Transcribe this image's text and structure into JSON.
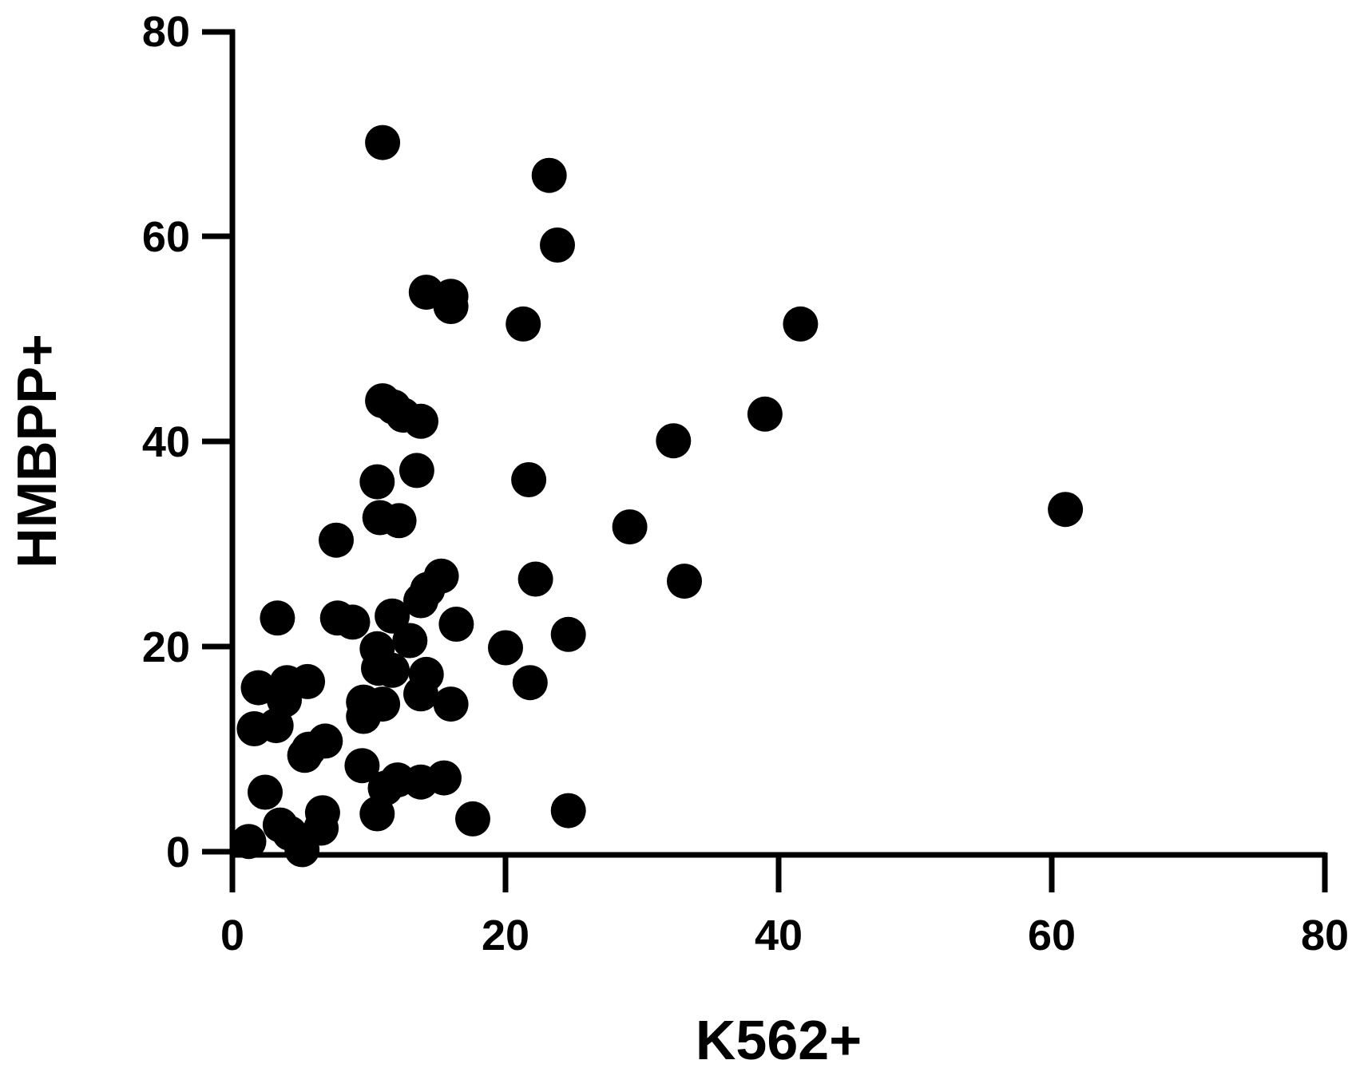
{
  "chart_data": {
    "type": "scatter",
    "title": "",
    "xlabel": "K562+",
    "ylabel": "HMBPP+",
    "xlim": [
      0,
      80
    ],
    "ylim": [
      0,
      80
    ],
    "xticks": [
      "0",
      "20",
      "40",
      "60",
      "80"
    ],
    "yticks": [
      "0",
      "20",
      "40",
      "60",
      "80"
    ],
    "grid": false,
    "marker_color": "#000000",
    "points": [
      {
        "x": 11.0,
        "y": 69.2
      },
      {
        "x": 23.2,
        "y": 66.0
      },
      {
        "x": 23.8,
        "y": 59.2
      },
      {
        "x": 14.2,
        "y": 54.6
      },
      {
        "x": 16.0,
        "y": 54.2
      },
      {
        "x": 16.0,
        "y": 53.2
      },
      {
        "x": 21.3,
        "y": 51.5
      },
      {
        "x": 41.6,
        "y": 51.5
      },
      {
        "x": 11.0,
        "y": 44.0
      },
      {
        "x": 11.8,
        "y": 43.4
      },
      {
        "x": 12.5,
        "y": 42.6
      },
      {
        "x": 13.8,
        "y": 42.0
      },
      {
        "x": 39.0,
        "y": 42.7
      },
      {
        "x": 32.3,
        "y": 40.1
      },
      {
        "x": 13.5,
        "y": 37.2
      },
      {
        "x": 10.6,
        "y": 36.1
      },
      {
        "x": 21.7,
        "y": 36.3
      },
      {
        "x": 61.0,
        "y": 33.4
      },
      {
        "x": 10.8,
        "y": 32.6
      },
      {
        "x": 12.2,
        "y": 32.3
      },
      {
        "x": 29.1,
        "y": 31.7
      },
      {
        "x": 7.6,
        "y": 30.4
      },
      {
        "x": 15.3,
        "y": 26.9
      },
      {
        "x": 14.3,
        "y": 25.6
      },
      {
        "x": 22.2,
        "y": 26.6
      },
      {
        "x": 33.1,
        "y": 26.4
      },
      {
        "x": 13.8,
        "y": 24.5
      },
      {
        "x": 3.3,
        "y": 22.8
      },
      {
        "x": 7.7,
        "y": 22.8
      },
      {
        "x": 8.8,
        "y": 22.4
      },
      {
        "x": 11.7,
        "y": 23.0
      },
      {
        "x": 16.4,
        "y": 22.2
      },
      {
        "x": 24.6,
        "y": 21.2
      },
      {
        "x": 13.0,
        "y": 20.6
      },
      {
        "x": 10.6,
        "y": 19.8
      },
      {
        "x": 20.0,
        "y": 19.9
      },
      {
        "x": 10.7,
        "y": 17.9
      },
      {
        "x": 11.7,
        "y": 17.7
      },
      {
        "x": 14.2,
        "y": 17.3
      },
      {
        "x": 21.8,
        "y": 16.5
      },
      {
        "x": 1.9,
        "y": 16.0
      },
      {
        "x": 4.0,
        "y": 16.5
      },
      {
        "x": 5.5,
        "y": 16.6
      },
      {
        "x": 3.8,
        "y": 14.8
      },
      {
        "x": 13.8,
        "y": 15.4
      },
      {
        "x": 16.0,
        "y": 14.4
      },
      {
        "x": 11.0,
        "y": 14.4
      },
      {
        "x": 9.6,
        "y": 14.6
      },
      {
        "x": 9.6,
        "y": 13.2
      },
      {
        "x": 1.6,
        "y": 12.0
      },
      {
        "x": 3.2,
        "y": 12.3
      },
      {
        "x": 6.8,
        "y": 10.8
      },
      {
        "x": 5.6,
        "y": 10.0
      },
      {
        "x": 5.3,
        "y": 9.4
      },
      {
        "x": 9.5,
        "y": 8.4
      },
      {
        "x": 15.5,
        "y": 7.2
      },
      {
        "x": 12.1,
        "y": 7.0
      },
      {
        "x": 13.8,
        "y": 6.8
      },
      {
        "x": 11.2,
        "y": 6.2
      },
      {
        "x": 2.4,
        "y": 5.8
      },
      {
        "x": 6.6,
        "y": 3.8
      },
      {
        "x": 10.6,
        "y": 3.7
      },
      {
        "x": 17.6,
        "y": 3.2
      },
      {
        "x": 24.6,
        "y": 4.0
      },
      {
        "x": 3.5,
        "y": 2.6
      },
      {
        "x": 6.5,
        "y": 2.3
      },
      {
        "x": 4.2,
        "y": 1.8
      },
      {
        "x": 1.2,
        "y": 1.0
      },
      {
        "x": 5.1,
        "y": 0.2
      }
    ]
  }
}
